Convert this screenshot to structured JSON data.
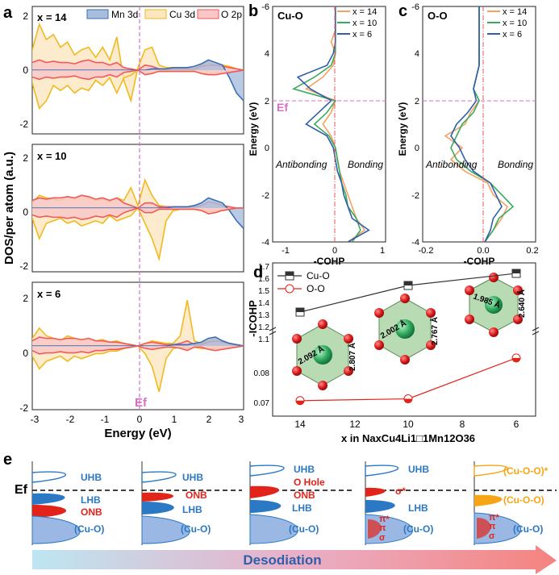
{
  "panel_labels": {
    "a": "a",
    "b": "b",
    "c": "c",
    "d": "d",
    "e": "e"
  },
  "panel_a": {
    "ylabel": "DOS/per atom (a.u.)",
    "xlabel": "Energy (eV)",
    "ef_label": "Ef",
    "legend": [
      "Mn 3d",
      "Cu 3d",
      "O 2p"
    ],
    "subpanels": [
      {
        "label": "x = 14",
        "yticks": [
          "2",
          "0",
          "-2"
        ]
      },
      {
        "label": "x = 10",
        "yticks": [
          "2",
          "0",
          "-2"
        ]
      },
      {
        "label": "x = 6",
        "yticks": [
          "2",
          "0",
          "-2"
        ]
      }
    ],
    "xticks": [
      "-3",
      "-2",
      "-1",
      "0",
      "1",
      "2",
      "3"
    ]
  },
  "panel_b": {
    "title": "Cu-O",
    "ylabel": "Energy (eV)",
    "xlabel": "-COHP",
    "ef_label": "Ef",
    "left_text": "Antibonding",
    "right_text": "Bonding",
    "xticks": [
      "-1",
      "0",
      "1"
    ],
    "yticks": [
      "4",
      "2",
      "0",
      "-2",
      "-4",
      "-6"
    ],
    "legend": [
      "x = 14",
      "x = 10",
      "x = 6"
    ]
  },
  "panel_c": {
    "title": "O-O",
    "ylabel": "Energy (eV)",
    "xlabel": "-COHP",
    "left_text": "Antibonding",
    "right_text": "Bonding",
    "xticks": [
      "-0.2",
      "0.0",
      "0.2"
    ],
    "yticks": [
      "4",
      "2",
      "0",
      "-2",
      "-4",
      "-6"
    ],
    "legend": [
      "x = 14",
      "x = 10",
      "x = 6"
    ]
  },
  "panel_d": {
    "ylabel": "-ICOHP",
    "xlabel": "x in NaxCu4Li1□1Mn12O36",
    "xticks": [
      "14",
      "12",
      "10",
      "8",
      "6"
    ],
    "yticks_top": [
      "1.7",
      "1.6",
      "1.5",
      "1.4",
      "1.3",
      "1.2",
      "1.1"
    ],
    "yticks_bottom": [
      "0.08",
      "0.07"
    ],
    "legend": [
      "Cu-O",
      "O-O"
    ],
    "bond_labels": [
      {
        "a": "2.092 Å",
        "b": "2.807 Å"
      },
      {
        "a": "2.002 Å",
        "b": "2.767 Å"
      },
      {
        "a": "1.985 Å",
        "b": "2.640 Å"
      }
    ]
  },
  "panel_e": {
    "ef_label": "Ef",
    "arrow_label": "Desodiation",
    "stages": [
      {
        "labels": [
          "UHB",
          "LHB",
          "ONB",
          "(Cu-O)"
        ]
      },
      {
        "labels": [
          "UHB",
          "ONB",
          "LHB",
          "(Cu-O)"
        ]
      },
      {
        "labels": [
          "UHB",
          "O Hole",
          "ONB",
          "LHB",
          "(Cu-O)"
        ]
      },
      {
        "labels": [
          "UHB",
          "σ*",
          "LHB",
          "π*",
          "π",
          "σ",
          "(Cu-O)"
        ]
      },
      {
        "labels": [
          "(Cu-O-O)*",
          "(Cu-O-O)",
          "π*",
          "π",
          "σ",
          "(Cu-O)"
        ]
      }
    ]
  },
  "colors": {
    "mn": "#3a6fb5",
    "mn_fill": "#a9bddf",
    "cu": "#f2b91e",
    "cu_fill": "#fbe7c0",
    "o": "#f05a5a",
    "o_fill": "#f9c7c7",
    "x14": "#f4a261",
    "x10": "#3aaa5c",
    "x6": "#2f5fa8",
    "ef_line": "#d46fc8",
    "red": "#e2231a",
    "blue": "#2b78c5"
  },
  "chart_data": [
    {
      "type": "area",
      "title": "",
      "xlabel": "Energy (eV)",
      "ylabel": "DOS/per atom (a.u.)",
      "xlim": [
        -3,
        3
      ],
      "ylim": [
        -2.5,
        2.5
      ],
      "panels": [
        {
          "name": "x = 14",
          "x": [
            -3,
            -2.8,
            -2.6,
            -2.4,
            -2.2,
            -2.0,
            -1.8,
            -1.6,
            -1.4,
            -1.2,
            -1.0,
            -0.8,
            -0.6,
            -0.4,
            -0.2,
            0,
            0.2,
            0.4,
            0.6,
            0.8,
            1.0,
            1.2,
            1.4,
            1.6,
            1.8,
            2.0,
            2.2,
            2.4,
            2.6,
            2.8,
            3.0
          ],
          "series": [
            {
              "name": "Cu 3d",
              "values": [
                0.8,
                1.8,
                1.2,
                1.4,
                0.9,
                1.1,
                0.6,
                0.8,
                0.9,
                0.5,
                0.9,
                0.4,
                1.3,
                -0.4,
                -1.2,
                0.1,
                0.8,
                0.9,
                0.2,
                0.1,
                0.1,
                0.1,
                0.05,
                0.05,
                0.2,
                0.3,
                0.2,
                0.2,
                0.15,
                0.05,
                0.0
              ]
            },
            {
              "name": "Cu 3d (lower)",
              "values": [
                -0.5,
                -1.5,
                -1.2,
                -0.6,
                -0.8,
                -0.6,
                -0.9,
                -0.7,
                -0.8,
                -0.4,
                -0.6,
                -0.3,
                -0.9,
                -0.3,
                -0.2,
                0.0,
                -0.15,
                -0.1,
                -0.05,
                -0.05,
                -0.05,
                -0.05,
                -0.05,
                -0.05,
                -0.1,
                -0.15,
                -0.1,
                -0.1,
                -0.1,
                -0.05,
                0.0
              ]
            },
            {
              "name": "O 2p",
              "values": [
                0.3,
                0.4,
                0.3,
                0.35,
                0.3,
                0.3,
                0.25,
                0.35,
                0.4,
                0.3,
                0.3,
                0.2,
                0.3,
                0.1,
                0.05,
                0.0,
                0.2,
                0.15,
                0.05,
                0.05,
                0.05,
                0.05,
                0.05,
                0.05,
                0.15,
                0.2,
                0.2,
                0.15,
                0.1,
                0.05,
                0.0
              ]
            },
            {
              "name": "Mn 3d",
              "values": [
                0.0,
                0.0,
                0.0,
                0.0,
                0.0,
                0.0,
                0.0,
                0.0,
                0.0,
                0.0,
                0.0,
                0.0,
                0.0,
                0.0,
                0.0,
                0.0,
                0.0,
                0.05,
                0.05,
                0.05,
                0.1,
                0.1,
                0.1,
                0.15,
                0.25,
                0.4,
                0.3,
                0.2,
                -0.3,
                -0.9,
                -1.2
              ]
            }
          ]
        },
        {
          "name": "x = 10",
          "x": [
            -3,
            -2.8,
            -2.6,
            -2.4,
            -2.2,
            -2.0,
            -1.8,
            -1.6,
            -1.4,
            -1.2,
            -1.0,
            -0.8,
            -0.6,
            -0.4,
            -0.2,
            0,
            0.2,
            0.4,
            0.6,
            0.8,
            1.0,
            1.2,
            1.4,
            1.6,
            1.8,
            2.0,
            2.2,
            2.4,
            2.6,
            2.8,
            3.0
          ],
          "series": [
            {
              "name": "Cu 3d",
              "values": [
                0.2,
                0.5,
                0.4,
                0.35,
                0.3,
                0.45,
                0.35,
                0.5,
                0.4,
                0.3,
                0.35,
                0.25,
                0.4,
                0.3,
                0.8,
                0.1,
                1.1,
                0.5,
                0.1,
                0.05,
                0.05,
                0.05,
                0.05,
                0.05,
                0.1,
                0.2,
                0.15,
                0.1,
                0.05,
                0.0,
                0.0
              ]
            },
            {
              "name": "Cu 3d (lower)",
              "values": [
                -0.4,
                -1.2,
                -0.6,
                -0.5,
                -0.4,
                -0.6,
                -0.5,
                -0.7,
                -0.6,
                -0.5,
                -0.6,
                -0.3,
                -0.5,
                -0.4,
                -0.3,
                0.0,
                -0.6,
                -1.2,
                -2.0,
                -0.5,
                -0.1,
                -0.05,
                -0.05,
                -0.05,
                -0.1,
                -0.15,
                -0.1,
                -0.1,
                -0.05,
                0.0,
                0.0
              ]
            },
            {
              "name": "O 2p",
              "values": [
                0.3,
                0.4,
                0.35,
                0.4,
                0.4,
                0.45,
                0.4,
                0.5,
                0.45,
                0.35,
                0.4,
                0.3,
                0.4,
                0.2,
                0.1,
                0.0,
                0.2,
                0.2,
                0.05,
                0.05,
                0.05,
                0.05,
                0.05,
                0.05,
                0.1,
                0.25,
                0.2,
                0.1,
                0.05,
                0.0,
                0.0
              ]
            },
            {
              "name": "Mn 3d",
              "values": [
                0.0,
                0.0,
                0.0,
                0.0,
                0.0,
                0.0,
                0.0,
                0.0,
                0.0,
                0.0,
                0.0,
                0.0,
                0.0,
                0.0,
                0.0,
                0.0,
                0.0,
                0.0,
                0.0,
                0.0,
                0.05,
                0.05,
                0.05,
                0.1,
                0.2,
                0.4,
                0.3,
                0.2,
                -0.1,
                -0.5,
                -0.8
              ]
            }
          ]
        },
        {
          "name": "x = 6",
          "x": [
            -3,
            -2.8,
            -2.6,
            -2.4,
            -2.2,
            -2.0,
            -1.8,
            -1.6,
            -1.4,
            -1.2,
            -1.0,
            -0.8,
            -0.6,
            -0.4,
            -0.2,
            0,
            0.2,
            0.4,
            0.6,
            0.8,
            1.0,
            1.2,
            1.4,
            1.6,
            1.8,
            2.0,
            2.2,
            2.4,
            2.6,
            2.8,
            3.0
          ],
          "series": [
            {
              "name": "Cu 3d",
              "values": [
                0.3,
                0.7,
                0.4,
                0.3,
                0.2,
                0.4,
                0.3,
                0.2,
                0.3,
                0.2,
                0.25,
                0.15,
                0.2,
                0.1,
                0.05,
                0.0,
                0.1,
                0.2,
                0.15,
                0.1,
                0.1,
                0.4,
                1.8,
                0.2,
                0.1,
                0.2,
                0.3,
                0.2,
                0.1,
                0.05,
                0.0
              ]
            },
            {
              "name": "Cu 3d (lower)",
              "values": [
                -0.4,
                -0.9,
                -0.6,
                -0.5,
                -0.4,
                -0.6,
                -0.4,
                -0.5,
                -0.4,
                -0.3,
                -0.3,
                -0.2,
                -0.2,
                -0.1,
                -0.05,
                0.0,
                -0.3,
                -0.8,
                -1.8,
                -0.5,
                -0.1,
                -0.05,
                -0.1,
                -0.05,
                -0.1,
                -0.1,
                -0.1,
                -0.1,
                -0.05,
                0.0,
                0.0
              ]
            },
            {
              "name": "O 2p",
              "values": [
                0.2,
                0.35,
                0.3,
                0.3,
                0.25,
                0.3,
                0.3,
                0.25,
                0.3,
                0.2,
                0.2,
                0.15,
                0.15,
                0.1,
                0.05,
                0.0,
                0.1,
                0.15,
                0.1,
                0.05,
                0.05,
                0.1,
                0.2,
                0.05,
                0.05,
                0.15,
                0.2,
                0.15,
                0.1,
                0.05,
                0.0
              ]
            },
            {
              "name": "Mn 3d",
              "values": [
                0.0,
                0.0,
                0.0,
                0.0,
                0.0,
                0.0,
                0.0,
                0.0,
                0.0,
                0.0,
                0.0,
                0.0,
                0.0,
                0.0,
                0.0,
                0.0,
                0.0,
                0.0,
                0.0,
                0.0,
                0.05,
                0.05,
                0.05,
                0.1,
                0.15,
                0.3,
                0.35,
                0.2,
                0.1,
                0.05,
                0.0
              ]
            }
          ]
        }
      ]
    },
    {
      "type": "line",
      "title": "Cu-O",
      "xlabel": "-COHP",
      "ylabel": "Energy (eV)",
      "xlim": [
        -1.5,
        1.2
      ],
      "ylim": [
        -6,
        4
      ],
      "y": [
        -6,
        -5.5,
        -5,
        -4.5,
        -4,
        -3.5,
        -3,
        -2.5,
        -2,
        -1.5,
        -1,
        -0.5,
        0,
        0.5,
        1,
        1.5,
        2,
        2.5,
        3,
        3.5,
        4
      ],
      "series": [
        {
          "name": "x = 14",
          "values": [
            0.3,
            0.7,
            0.5,
            0.4,
            0.3,
            0.2,
            0.1,
            0.05,
            0.0,
            -0.1,
            -0.3,
            -0.1,
            0.0,
            -0.7,
            -0.3,
            -0.05,
            0.0,
            -0.1,
            0.0,
            0.0,
            0.0
          ]
        },
        {
          "name": "x = 10",
          "values": [
            0.4,
            0.6,
            0.5,
            0.3,
            0.25,
            0.15,
            0.1,
            0.05,
            0.0,
            -0.15,
            -0.5,
            -0.2,
            0.0,
            -1.0,
            -0.5,
            -0.1,
            0.0,
            0.0,
            0.0,
            0.0,
            0.0
          ]
        },
        {
          "name": "x = 6",
          "values": [
            0.3,
            0.8,
            0.4,
            0.3,
            0.2,
            0.15,
            0.05,
            0.0,
            -0.05,
            -0.2,
            -0.7,
            -0.4,
            -0.1,
            -0.6,
            -0.9,
            -0.2,
            -0.05,
            0.0,
            0.0,
            0.0,
            0.0
          ]
        }
      ]
    },
    {
      "type": "line",
      "title": "O-O",
      "xlabel": "-COHP",
      "ylabel": "Energy (eV)",
      "xlim": [
        -0.2,
        0.2
      ],
      "ylim": [
        -6,
        4
      ],
      "y": [
        -6,
        -5.5,
        -5,
        -4.5,
        -4,
        -3.5,
        -3,
        -2.5,
        -2,
        -1.5,
        -1,
        -0.5,
        0,
        0.5,
        1,
        1.5,
        2,
        2.5,
        3,
        3.5,
        4
      ],
      "series": [
        {
          "name": "x = 14",
          "values": [
            0.02,
            0.05,
            0.08,
            0.1,
            0.05,
            0.03,
            -0.05,
            -0.1,
            -0.06,
            -0.12,
            -0.05,
            -0.03,
            0.0,
            -0.02,
            -0.01,
            0.0,
            0.0,
            0.0,
            0.0,
            0.0,
            0.0
          ]
        },
        {
          "name": "x = 10",
          "values": [
            0.02,
            0.05,
            0.07,
            0.12,
            0.08,
            0.04,
            -0.03,
            -0.08,
            -0.1,
            -0.08,
            -0.06,
            -0.02,
            0.0,
            -0.02,
            -0.01,
            0.0,
            0.0,
            0.0,
            0.0,
            0.0,
            0.0
          ]
        },
        {
          "name": "x = 6",
          "values": [
            0.02,
            0.04,
            0.05,
            0.08,
            0.06,
            0.04,
            -0.02,
            -0.05,
            -0.07,
            -0.1,
            -0.08,
            -0.04,
            -0.01,
            -0.02,
            -0.01,
            0.0,
            0.0,
            0.0,
            0.0,
            0.0,
            0.0
          ]
        }
      ]
    },
    {
      "type": "line",
      "title": "",
      "xlabel": "x in NaxCu4Li1□1Mn12O36",
      "ylabel": "-ICOHP",
      "x": [
        14,
        10,
        6
      ],
      "series": [
        {
          "name": "Cu-O",
          "values": [
            1.32,
            1.54,
            1.64
          ]
        },
        {
          "name": "O-O",
          "values": [
            0.0706,
            0.0712,
            0.0849
          ]
        }
      ]
    }
  ]
}
